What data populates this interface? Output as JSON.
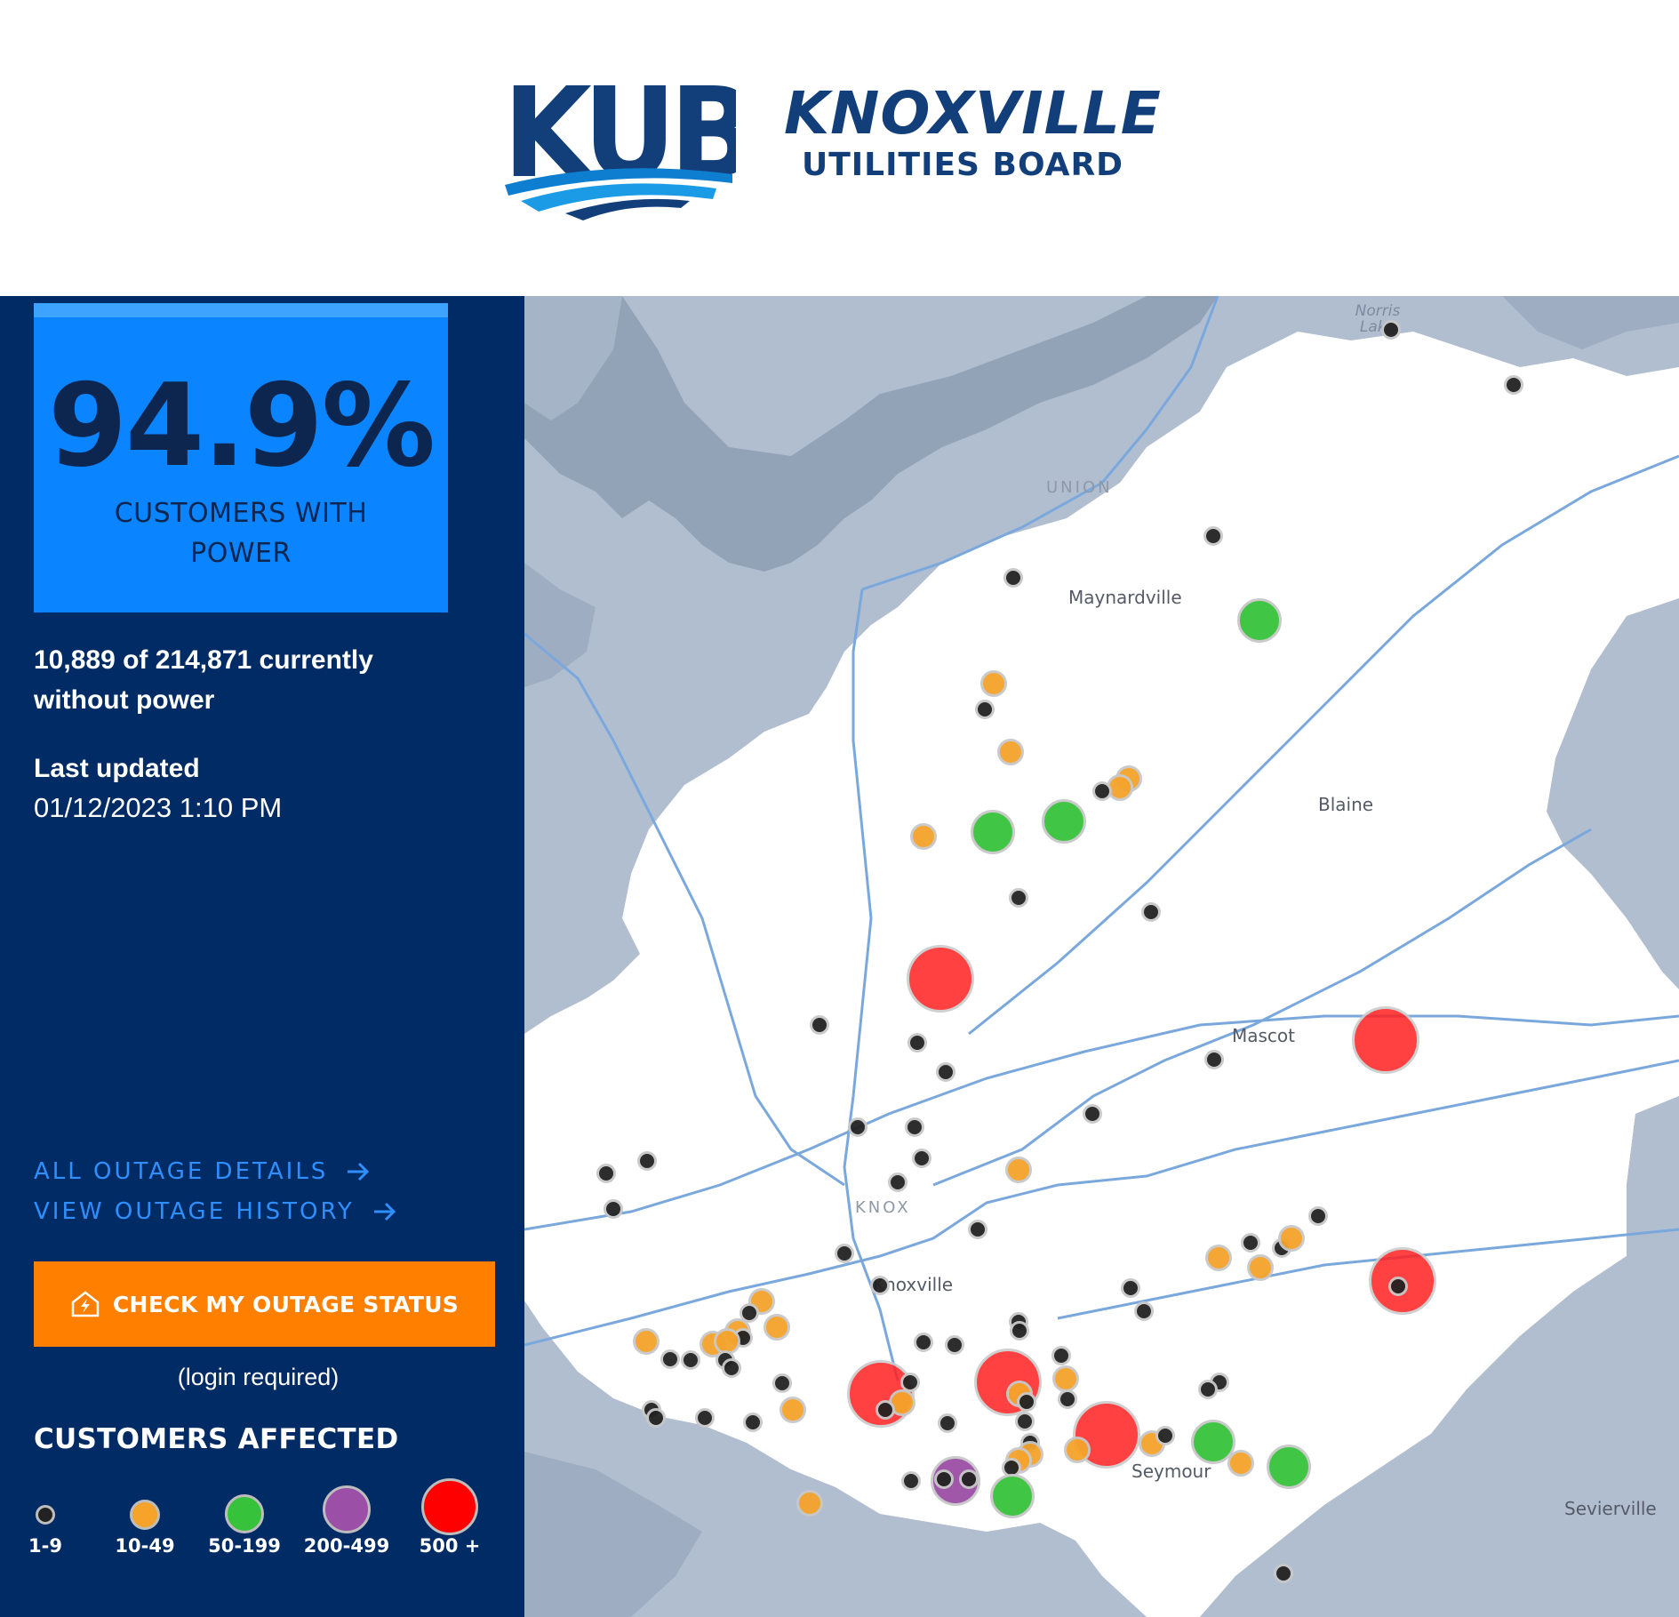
{
  "header": {
    "logo_alt": "KUB",
    "name_line1": "KNOXVILLE",
    "name_line2": "UTILITIES BOARD"
  },
  "summary": {
    "percent": "94.9%",
    "percent_label": "CUSTOMERS WITH POWER",
    "counts_text": "10,889 of 214,871 currently without power",
    "last_updated_label": "Last updated",
    "last_updated_value": "01/12/2023 1:10 PM"
  },
  "links": {
    "all_outage_details": "ALL OUTAGE DETAILS",
    "view_outage_history": "VIEW OUTAGE HISTORY"
  },
  "cta": {
    "label": "CHECK MY OUTAGE STATUS",
    "note": "(login required)",
    "icon": "house-lightning-icon"
  },
  "legend": {
    "title": "CUSTOMERS AFFECTED",
    "items": [
      {
        "label": "1-9",
        "color": "#222222"
      },
      {
        "label": "10-49",
        "color": "#f5a32b"
      },
      {
        "label": "50-199",
        "color": "#36c23b"
      },
      {
        "label": "200-499",
        "color": "#9b4fa6"
      },
      {
        "label": "500 +",
        "color": "#ff0000"
      }
    ]
  },
  "map": {
    "labels": {
      "norris_lake": "Norris Lake",
      "union": "UNION",
      "maynardville": "Maynardville",
      "blaine": "Blaine",
      "mascot": "Mascot",
      "knox": "KNOX",
      "knoxville": "Knoxville",
      "seymour": "Seymour",
      "sevierville": "Sevierville"
    },
    "colors": {
      "land_outside": "#b1bed0",
      "service_area": "#ffffff",
      "water": "#8fa0b5",
      "roads": "#7aa8dd"
    }
  }
}
